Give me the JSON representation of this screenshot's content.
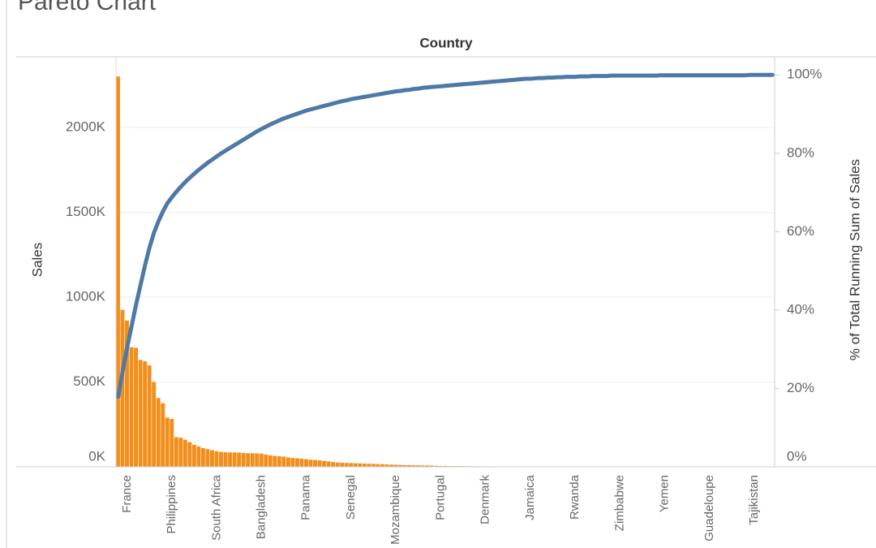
{
  "chart_data": {
    "type": "bar",
    "title": "Pareto Chart",
    "xlabel": "Country",
    "categories": [
      null,
      null,
      "France",
      null,
      null,
      null,
      null,
      null,
      null,
      null,
      null,
      null,
      "Philippines",
      null,
      null,
      null,
      null,
      null,
      null,
      null,
      null,
      null,
      "South Africa",
      null,
      null,
      null,
      null,
      null,
      null,
      null,
      null,
      null,
      "Bangladesh",
      null,
      null,
      null,
      null,
      null,
      null,
      null,
      null,
      null,
      "Panama",
      null,
      null,
      null,
      null,
      null,
      null,
      null,
      null,
      null,
      "Senegal",
      null,
      null,
      null,
      null,
      null,
      null,
      null,
      null,
      null,
      "Mozambique",
      null,
      null,
      null,
      null,
      null,
      null,
      null,
      null,
      null,
      "Portugal",
      null,
      null,
      null,
      null,
      null,
      null,
      null,
      null,
      null,
      "Denmark",
      null,
      null,
      null,
      null,
      null,
      null,
      null,
      null,
      null,
      "Jamaica",
      null,
      null,
      null,
      null,
      null,
      null,
      null,
      null,
      null,
      "Rwanda",
      null,
      null,
      null,
      null,
      null,
      null,
      null,
      null,
      null,
      "Zimbabwe",
      null,
      null,
      null,
      null,
      null,
      null,
      null,
      null,
      null,
      "Yemen",
      null,
      null,
      null,
      null,
      null,
      null,
      null,
      null,
      null,
      "Guadeloupe",
      null,
      null,
      null,
      null,
      null,
      null,
      null,
      null,
      null,
      "Tajikistan",
      null,
      null,
      null,
      null
    ],
    "series": [
      {
        "name": "Sales",
        "type": "bar",
        "color": "#f28e1c",
        "values": [
          2300000,
          925000,
          862000,
          705000,
          702000,
          630000,
          622000,
          598000,
          500000,
          405000,
          375000,
          290000,
          282000,
          175000,
          172000,
          160000,
          145000,
          130000,
          120000,
          110000,
          104000,
          98000,
          92000,
          88000,
          86000,
          85000,
          85000,
          84000,
          82000,
          80000,
          80000,
          79000,
          78000,
          72000,
          68000,
          64000,
          62000,
          60000,
          55000,
          52000,
          50000,
          48000,
          45000,
          42000,
          40000,
          38000,
          35000,
          32000,
          28000,
          25000,
          24000,
          23000,
          22000,
          21000,
          20000,
          19000,
          18000,
          17000,
          16000,
          15000,
          14000,
          13000,
          12000,
          11000,
          10000,
          10000,
          9000,
          9000,
          8000,
          8000,
          7000,
          6000,
          5000,
          5000,
          4000,
          4000,
          4000,
          3500,
          3500,
          3000,
          3000,
          3000,
          2500,
          2500,
          2500,
          2000,
          2000,
          2000,
          2000,
          2000,
          1800,
          1800,
          1800,
          1800,
          1800,
          1500,
          1500,
          1500,
          1500,
          1500,
          1200,
          1200,
          1200,
          1200,
          1200,
          1000,
          1000,
          1000,
          1000,
          1000,
          800,
          800,
          800,
          800,
          800,
          600,
          600,
          600,
          600,
          600,
          500,
          500,
          500,
          500,
          500,
          400,
          400,
          400,
          400,
          400,
          300,
          300,
          300,
          300,
          300,
          200,
          200,
          200,
          200,
          200,
          100,
          100,
          100,
          100,
          100,
          100,
          100
        ]
      },
      {
        "name": "% of Total Running Sum of Sales",
        "type": "line",
        "axis": "y2",
        "color": "#4e79a7",
        "values": [
          17.9,
          24.5,
          30.5,
          36.0,
          41.5,
          46.5,
          51.5,
          56.0,
          59.8,
          62.7,
          65.2,
          67.3,
          68.8,
          70.2,
          71.5,
          72.7,
          73.8,
          74.8,
          75.8,
          76.7,
          77.6,
          78.4,
          79.2,
          80.0,
          80.7,
          81.4,
          82.1,
          82.8,
          83.5,
          84.2,
          84.9,
          85.6,
          86.2,
          86.8,
          87.4,
          87.9,
          88.4,
          88.9,
          89.3,
          89.7,
          90.1,
          90.5,
          90.9,
          91.2,
          91.5,
          91.8,
          92.1,
          92.4,
          92.7,
          93.0,
          93.3,
          93.5,
          93.8,
          94.0,
          94.2,
          94.4,
          94.6,
          94.8,
          95.0,
          95.2,
          95.4,
          95.6,
          95.8,
          95.9,
          96.1,
          96.2,
          96.4,
          96.5,
          96.7,
          96.8,
          96.9,
          97.0,
          97.1,
          97.2,
          97.3,
          97.4,
          97.5,
          97.6,
          97.7,
          97.8,
          97.9,
          98.0,
          98.1,
          98.2,
          98.3,
          98.4,
          98.5,
          98.6,
          98.7,
          98.8,
          98.9,
          99.0,
          99.0,
          99.1,
          99.2,
          99.2,
          99.3,
          99.3,
          99.4,
          99.4,
          99.5,
          99.5,
          99.5,
          99.6,
          99.6,
          99.6,
          99.7,
          99.7,
          99.7,
          99.7,
          99.8,
          99.8,
          99.8,
          99.8,
          99.8,
          99.8,
          99.8,
          99.8,
          99.8,
          99.8,
          99.8,
          99.9,
          99.9,
          99.9,
          99.9,
          99.9,
          99.9,
          99.9,
          99.9,
          99.9,
          99.9,
          99.9,
          99.9,
          99.9,
          99.9,
          99.9,
          99.9,
          99.9,
          99.9,
          99.9,
          99.9,
          100,
          100,
          100,
          100,
          100,
          100
        ]
      }
    ],
    "ylim": [
      0,
      2416000
    ],
    "yticks": [
      {
        "value": 0,
        "label": "0K"
      },
      {
        "value": 500000,
        "label": "500K"
      },
      {
        "value": 1000000,
        "label": "1000K"
      },
      {
        "value": 1500000,
        "label": "1500K"
      },
      {
        "value": 2000000,
        "label": "2000K"
      }
    ],
    "y2lim": [
      0,
      104.6
    ],
    "y2ticks": [
      {
        "value": 0,
        "label": "0%"
      },
      {
        "value": 20,
        "label": "20%"
      },
      {
        "value": 40,
        "label": "40%"
      },
      {
        "value": 60,
        "label": "60%"
      },
      {
        "value": 80,
        "label": "80%"
      },
      {
        "value": 100,
        "label": "100%"
      }
    ],
    "grid": true
  }
}
